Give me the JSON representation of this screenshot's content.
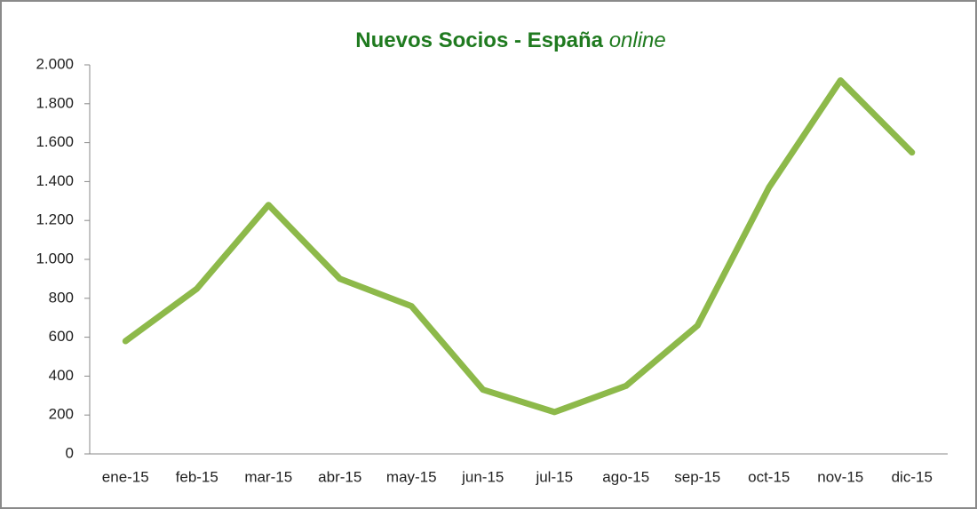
{
  "chart_data": {
    "type": "line",
    "title": {
      "text": "Nuevos Socios - España",
      "emphasis": "online"
    },
    "categories": [
      "ene-15",
      "feb-15",
      "mar-15",
      "abr-15",
      "may-15",
      "jun-15",
      "jul-15",
      "ago-15",
      "sep-15",
      "oct-15",
      "nov-15",
      "dic-15"
    ],
    "values": [
      580,
      850,
      1280,
      900,
      760,
      330,
      215,
      350,
      660,
      1370,
      1920,
      1550
    ],
    "color": "#8db94a",
    "ylim": [
      0,
      2000
    ],
    "yticks": [
      0,
      200,
      400,
      600,
      800,
      {
        "value": 1000,
        "label": "1.000"
      },
      {
        "value": 1200,
        "label": "1.200"
      },
      {
        "value": 1400,
        "label": "1.400"
      },
      {
        "value": 1600,
        "label": "1.600"
      },
      {
        "value": 1800,
        "label": "1.800"
      },
      {
        "value": 2000,
        "label": "2.000"
      }
    ],
    "grid": false
  }
}
